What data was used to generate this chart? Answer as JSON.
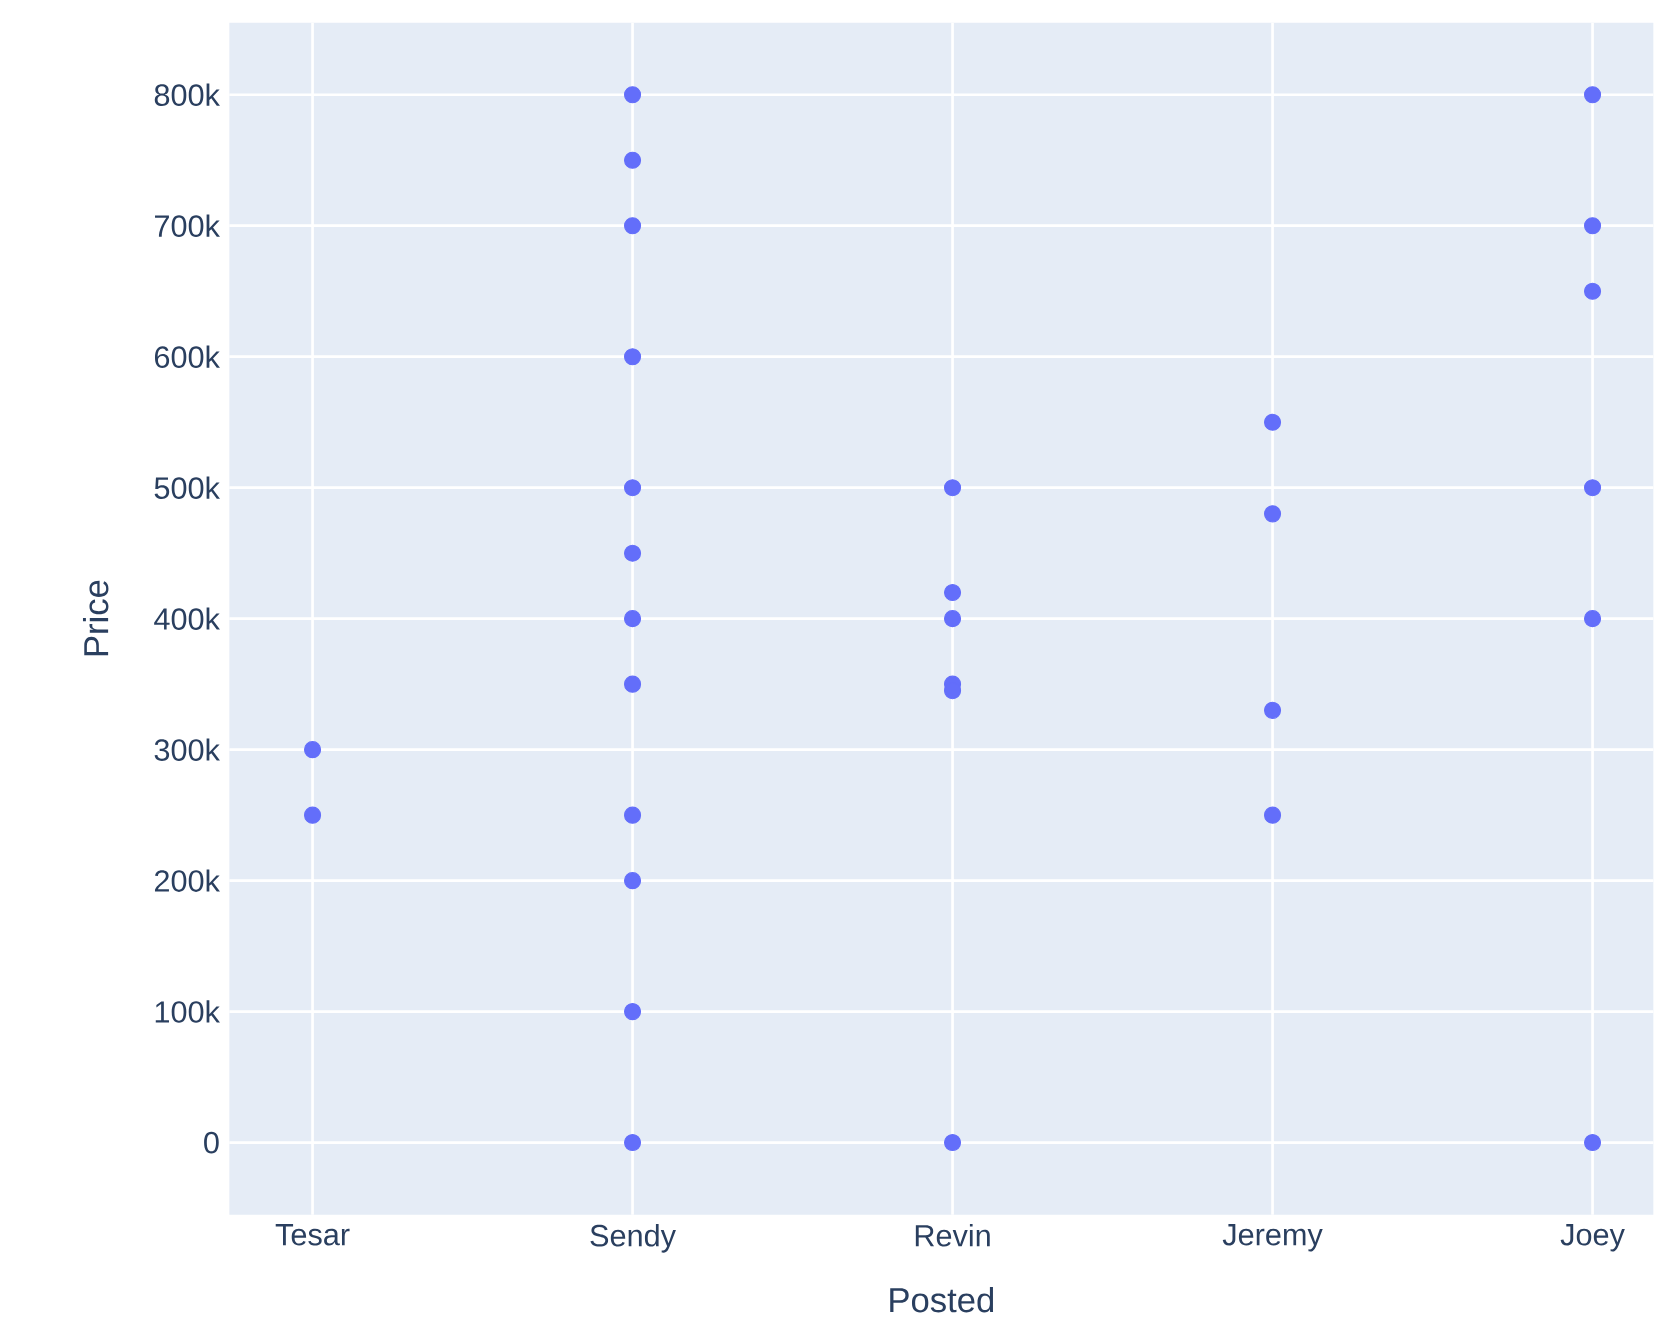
{
  "chart_data": {
    "type": "scatter",
    "xlabel": "Posted",
    "ylabel": "Price",
    "categories": [
      "Tesar",
      "Sendy",
      "Revin",
      "Jeremy",
      "Joey"
    ],
    "series": [
      {
        "color": "#636efa",
        "x": [
          "Tesar",
          "Tesar",
          "Sendy",
          "Sendy",
          "Sendy",
          "Sendy",
          "Sendy",
          "Sendy",
          "Sendy",
          "Sendy",
          "Sendy",
          "Sendy",
          "Sendy",
          "Sendy",
          "Revin",
          "Revin",
          "Revin",
          "Revin",
          "Revin",
          "Revin",
          "Jeremy",
          "Jeremy",
          "Jeremy",
          "Jeremy",
          "Joey",
          "Joey",
          "Joey",
          "Joey",
          "Joey",
          "Joey"
        ],
        "values": [
          300000,
          250000,
          800000,
          750000,
          700000,
          600000,
          500000,
          450000,
          400000,
          350000,
          250000,
          200000,
          100000,
          0,
          500000,
          420000,
          400000,
          350000,
          345000,
          0,
          550000,
          480000,
          330000,
          250000,
          800000,
          700000,
          650000,
          500000,
          400000,
          0
        ]
      }
    ],
    "ylim": [
      -55000,
      855000
    ],
    "yticks": [
      0,
      {
        "value": 100000,
        "label": "100k"
      },
      {
        "value": 200000,
        "label": "200k"
      },
      {
        "value": 300000,
        "label": "300k"
      },
      {
        "value": 400000,
        "label": "400k"
      },
      {
        "value": 500000,
        "label": "500k"
      },
      {
        "value": 600000,
        "label": "600k"
      },
      {
        "value": 700000,
        "label": "700k"
      },
      {
        "value": 800000,
        "label": "800k"
      }
    ],
    "grid": true
  }
}
